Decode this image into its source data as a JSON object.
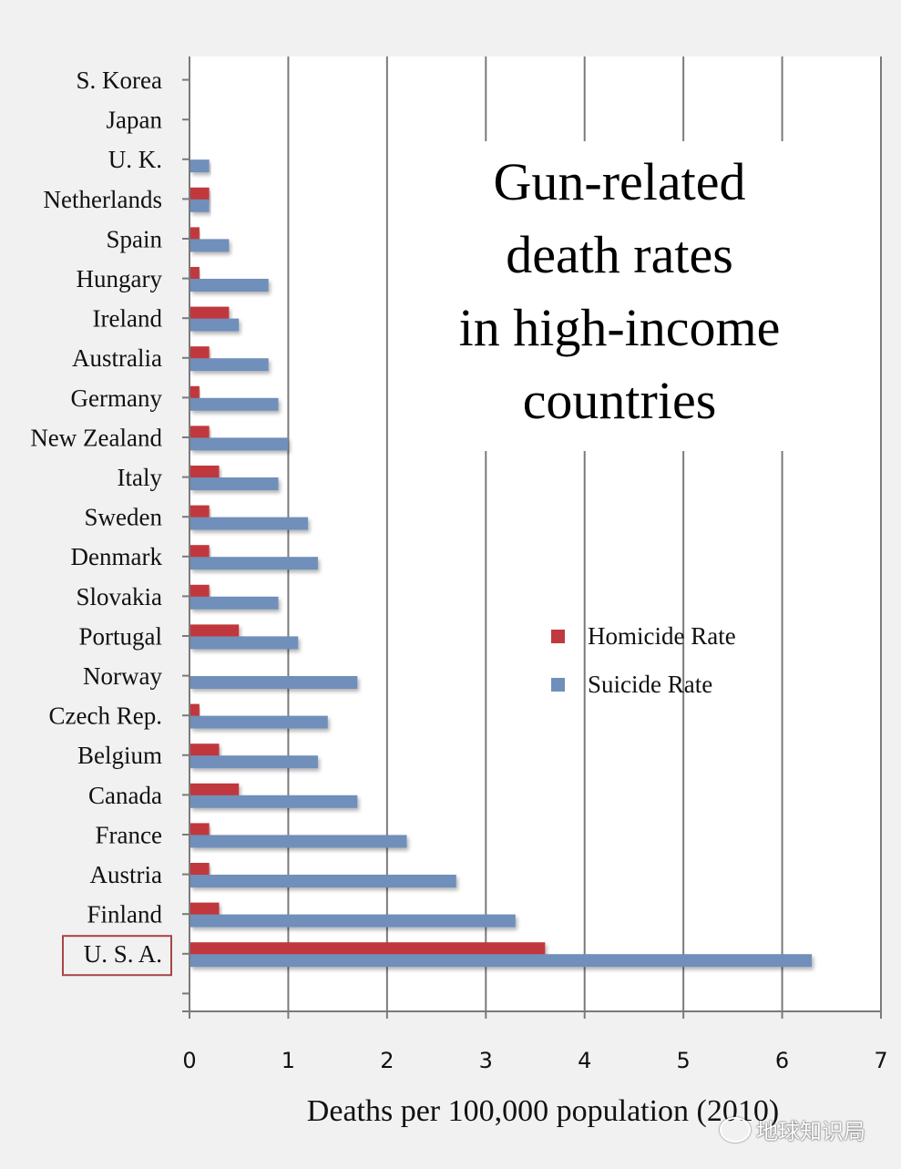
{
  "chart_data": {
    "type": "bar",
    "orientation": "horizontal",
    "title": "Gun-related death rates in high-income countries",
    "title_lines": [
      "Gun-related",
      "death rates",
      "in high-income",
      "countries"
    ],
    "xlabel": "Deaths per 100,000 population (2010)",
    "ylabel": "",
    "xlim": [
      0,
      7
    ],
    "xticks": [
      "0",
      "1",
      "2",
      "3",
      "4",
      "5",
      "6",
      "7"
    ],
    "grid": true,
    "legend_position": "center-right",
    "highlighted_category": "U. S. A.",
    "categories": [
      "S. Korea",
      "Japan",
      "U. K.",
      "Netherlands",
      "Spain",
      "Hungary",
      "Ireland",
      "Australia",
      "Germany",
      "New Zealand",
      "Italy",
      "Sweden",
      "Denmark",
      "Slovakia",
      "Portugal",
      "Norway",
      "Czech Rep.",
      "Belgium",
      "Canada",
      "France",
      "Austria",
      "Finland",
      "U. S. A."
    ],
    "series": [
      {
        "name": "Homicide Rate",
        "color": "#c0393e",
        "values": [
          0,
          0,
          0,
          0.2,
          0.1,
          0.1,
          0.4,
          0.2,
          0.1,
          0.2,
          0.3,
          0.2,
          0.2,
          0.2,
          0.5,
          0,
          0.1,
          0.3,
          0.5,
          0.2,
          0.2,
          0.3,
          3.6
        ]
      },
      {
        "name": "Suicide Rate",
        "color": "#6f8fba",
        "values": [
          0,
          0,
          0.2,
          0.2,
          0.4,
          0.8,
          0.5,
          0.8,
          0.9,
          1.0,
          0.9,
          1.2,
          1.3,
          0.9,
          1.1,
          1.7,
          1.4,
          1.3,
          1.7,
          2.2,
          2.7,
          3.3,
          6.3
        ]
      }
    ]
  },
  "watermark": "地球知识局"
}
